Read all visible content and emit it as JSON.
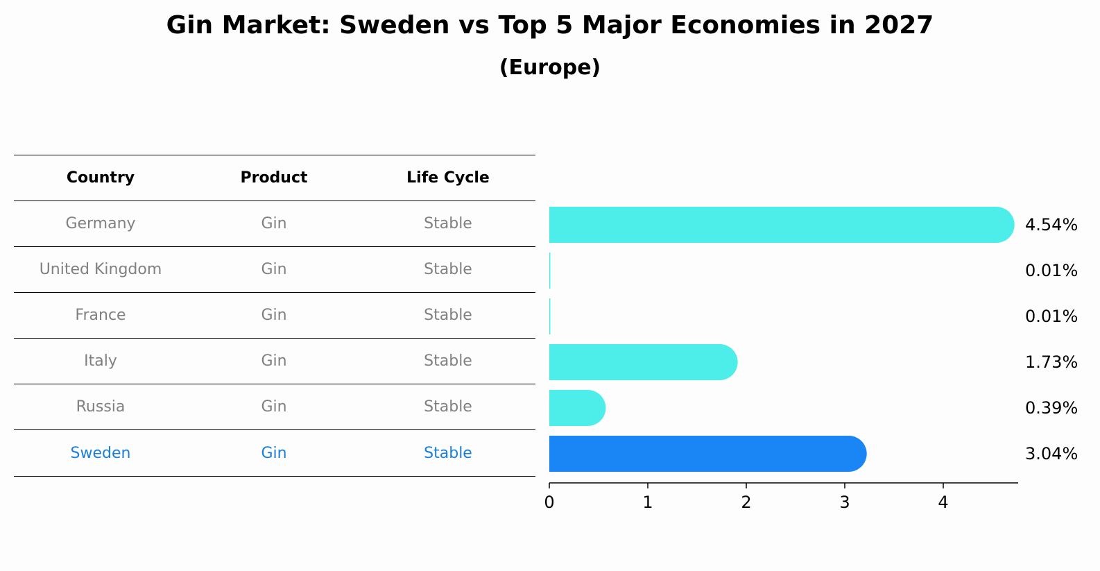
{
  "title": "Gin Market: Sweden vs Top 5 Major Economies in 2027",
  "subtitle": "(Europe)",
  "table": {
    "headers": [
      "Country",
      "Product",
      "Life Cycle"
    ],
    "rows": [
      [
        "Germany",
        "Gin",
        "Stable"
      ],
      [
        "United Kingdom",
        "Gin",
        "Stable"
      ],
      [
        "France",
        "Gin",
        "Stable"
      ],
      [
        "Italy",
        "Gin",
        "Stable"
      ],
      [
        "Russia",
        "Gin",
        "Stable"
      ],
      [
        "Sweden",
        "Gin",
        "Stable"
      ]
    ],
    "highlight_row": "Sweden"
  },
  "colors": {
    "bar": "#4deeea",
    "highlight_bar": "#1a85f5",
    "highlight_text": "#1a7fd8",
    "row_text": "#808080"
  },
  "chart_data": {
    "type": "bar",
    "orientation": "horizontal",
    "categories": [
      "Germany",
      "United Kingdom",
      "France",
      "Italy",
      "Russia",
      "Sweden"
    ],
    "values": [
      4.54,
      0.01,
      0.01,
      1.73,
      0.39,
      3.04
    ],
    "value_labels": [
      "4.54%",
      "0.01%",
      "0.01%",
      "1.73%",
      "0.39%",
      "3.04%"
    ],
    "highlight": "Sweden",
    "xticks": [
      0,
      1,
      2,
      3,
      4
    ],
    "xlim": [
      0,
      4.75
    ],
    "grid": false
  }
}
